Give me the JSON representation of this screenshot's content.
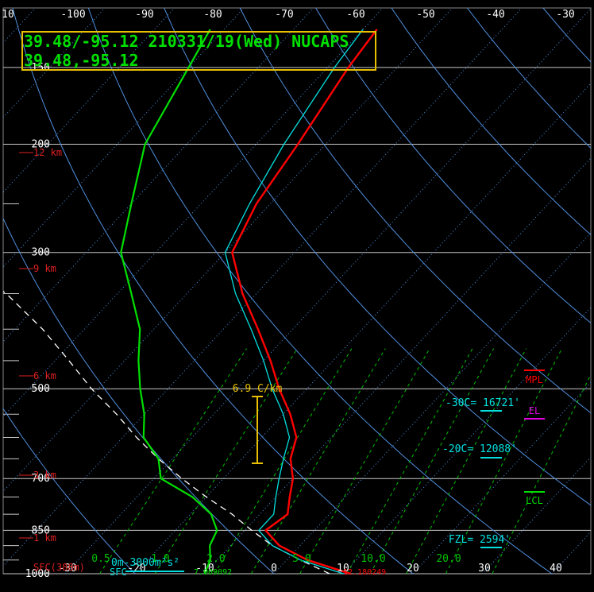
{
  "header": {
    "line1": "39.48/-95.12 210331/19(Wed) NUCAPS",
    "line2": "39.48,-95.12"
  },
  "colors": {
    "background": "#000000",
    "temperature": "#ff0000",
    "dewpoint": "#00e000",
    "virtual_temp": "#00e0e0",
    "parcel": "#ffffff",
    "isotherm": "#5090e0",
    "dry_adiabat": "#5090e0",
    "mixing_ratio": "#00c000",
    "isobar": "#c8c8c8",
    "height": "#e02020",
    "lapse": "#e8c000",
    "frame": "#e8c000",
    "el": "#e000e0"
  },
  "chart_data": {
    "type": "line",
    "title": "",
    "skew": true,
    "log_pressure": true,
    "top_temp_ticks": [
      "10",
      "-100",
      "-90",
      "-80",
      "-70",
      "-60",
      "-50",
      "-40",
      "-30"
    ],
    "bottom_temp_ticks": [
      "-30",
      "-20",
      "-10",
      "0",
      "10",
      "20",
      "30",
      "40"
    ],
    "pressure_labels": [
      "150",
      "200",
      "300",
      "500",
      "700",
      "850",
      "1000"
    ],
    "height_labels": [
      "12 km",
      "9 km",
      "6 km",
      "3 km",
      "1 km"
    ],
    "mixing_ratio_labels": [
      "0.5",
      "1.0",
      "2.0",
      "5.0",
      "10.0",
      "20.0"
    ],
    "ylim": [
      1000,
      120
    ],
    "temperature": [
      [
        1000,
        11
      ],
      [
        950,
        3
      ],
      [
        900,
        -3
      ],
      [
        850,
        -7
      ],
      [
        800,
        -6
      ],
      [
        750,
        -8
      ],
      [
        700,
        -10
      ],
      [
        650,
        -13
      ],
      [
        600,
        -15
      ],
      [
        550,
        -19
      ],
      [
        500,
        -24
      ],
      [
        450,
        -29
      ],
      [
        400,
        -35
      ],
      [
        350,
        -42
      ],
      [
        300,
        -49
      ],
      [
        250,
        -52
      ],
      [
        200,
        -54
      ],
      [
        150,
        -57
      ],
      [
        130,
        -58
      ]
    ],
    "dewpoint": [
      [
        1000,
        -10
      ],
      [
        950,
        -11
      ],
      [
        900,
        -13
      ],
      [
        850,
        -14
      ],
      [
        800,
        -17
      ],
      [
        750,
        -22
      ],
      [
        700,
        -29
      ],
      [
        650,
        -32
      ],
      [
        600,
        -37
      ],
      [
        550,
        -40
      ],
      [
        500,
        -44
      ],
      [
        450,
        -48
      ],
      [
        400,
        -52
      ],
      [
        350,
        -58
      ],
      [
        300,
        -65
      ],
      [
        250,
        -70
      ],
      [
        200,
        -76
      ],
      [
        150,
        -80
      ],
      [
        130,
        -82
      ]
    ],
    "virtual_temperature": [
      [
        1000,
        10
      ],
      [
        950,
        2
      ],
      [
        900,
        -4
      ],
      [
        850,
        -8
      ],
      [
        800,
        -8
      ],
      [
        750,
        -10
      ],
      [
        700,
        -12
      ],
      [
        650,
        -14
      ],
      [
        600,
        -16
      ],
      [
        550,
        -20
      ],
      [
        500,
        -25
      ],
      [
        450,
        -30
      ],
      [
        400,
        -36
      ],
      [
        350,
        -43
      ],
      [
        300,
        -50
      ],
      [
        250,
        -53
      ],
      [
        200,
        -56
      ],
      [
        150,
        -59
      ],
      [
        130,
        -60
      ]
    ],
    "parcel": [
      [
        1000,
        8
      ],
      [
        950,
        2
      ],
      [
        900,
        -4
      ],
      [
        850,
        -9
      ],
      [
        800,
        -14
      ],
      [
        750,
        -20
      ],
      [
        700,
        -26
      ],
      [
        650,
        -32
      ],
      [
        600,
        -38
      ],
      [
        550,
        -44
      ],
      [
        500,
        -51
      ],
      [
        450,
        -58
      ],
      [
        400,
        -66
      ],
      [
        350,
        -76
      ],
      [
        300,
        -90
      ],
      [
        250,
        -100
      ],
      [
        200,
        -114
      ]
    ],
    "levels": {
      "MPL": "",
      "EL": "",
      "LCL": "",
      "minus30c": "-30C=",
      "minus30c_value": "16721'",
      "minus20c": "-20C=",
      "minus20c_value": "12088'",
      "fzl": "FZL=",
      "fzl_value": "2594'"
    },
    "lapse_rate": "6.9 C/km",
    "sfc_label": "SFC(388m)",
    "sfc_helicity": "0m-3000m²s²",
    "sfc_small_1": "7.009092",
    "sfc_small_2": "12.180249",
    "sfc_short": "SFC",
    "level_names": [
      "MPL",
      "EL",
      "LCL"
    ]
  }
}
